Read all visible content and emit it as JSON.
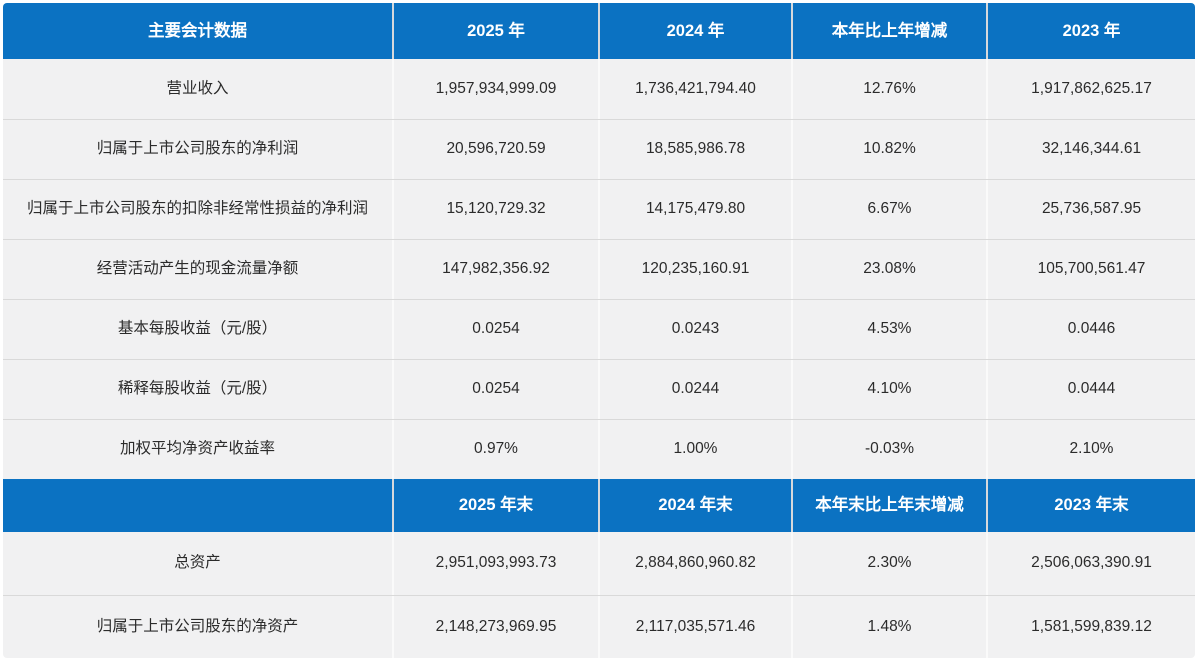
{
  "chart_data": {
    "type": "table",
    "title": "主要会计数据",
    "column_count": 5,
    "sections": [
      {
        "name": "annual-figures",
        "header": [
          "主要会计数据",
          "2025 年",
          "2024 年",
          "本年比上年增减",
          "2023 年"
        ],
        "rows": [
          [
            "营业收入",
            "1,957,934,999.09",
            "1,736,421,794.40",
            "12.76%",
            "1,917,862,625.17"
          ],
          [
            "归属于上市公司股东的净利润",
            "20,596,720.59",
            "18,585,986.78",
            "10.82%",
            "32,146,344.61"
          ],
          [
            "归属于上市公司股东的扣除非经常性损益的净利润",
            "15,120,729.32",
            "14,175,479.80",
            "6.67%",
            "25,736,587.95"
          ],
          [
            "经营活动产生的现金流量净额",
            "147,982,356.92",
            "120,235,160.91",
            "23.08%",
            "105,700,561.47"
          ],
          [
            "基本每股收益（元/股）",
            "0.0254",
            "0.0243",
            "4.53%",
            "0.0446"
          ],
          [
            "稀释每股收益（元/股）",
            "0.0254",
            "0.0244",
            "4.10%",
            "0.0444"
          ],
          [
            "加权平均净资产收益率",
            "0.97%",
            "1.00%",
            "-0.03%",
            "2.10%"
          ]
        ]
      },
      {
        "name": "year-end-figures",
        "header": [
          "",
          "2025 年末",
          "2024 年末",
          "本年末比上年末增减",
          "2023 年末"
        ],
        "rows": [
          [
            "总资产",
            "2,951,093,993.73",
            "2,884,860,960.82",
            "2.30%",
            "2,506,063,390.91"
          ],
          [
            "归属于上市公司股东的净资产",
            "2,148,273,969.95",
            "2,117,035,571.46",
            "1.48%",
            "1,581,599,839.12"
          ]
        ]
      }
    ],
    "layout": {
      "grid": "off",
      "legend": "none",
      "header_alignment": "center",
      "cell_alignment": "center"
    }
  },
  "colors": {
    "header_bg": "#0b72c2",
    "header_text": "#ffffff",
    "row_bg": "#f1f1f2",
    "row_divider": "#d9d9d9",
    "column_divider_body": "#fafafa",
    "column_divider_header": "#d6d9dc",
    "cell_text": "#2b2b2b",
    "page_bg": "#ffffff"
  }
}
